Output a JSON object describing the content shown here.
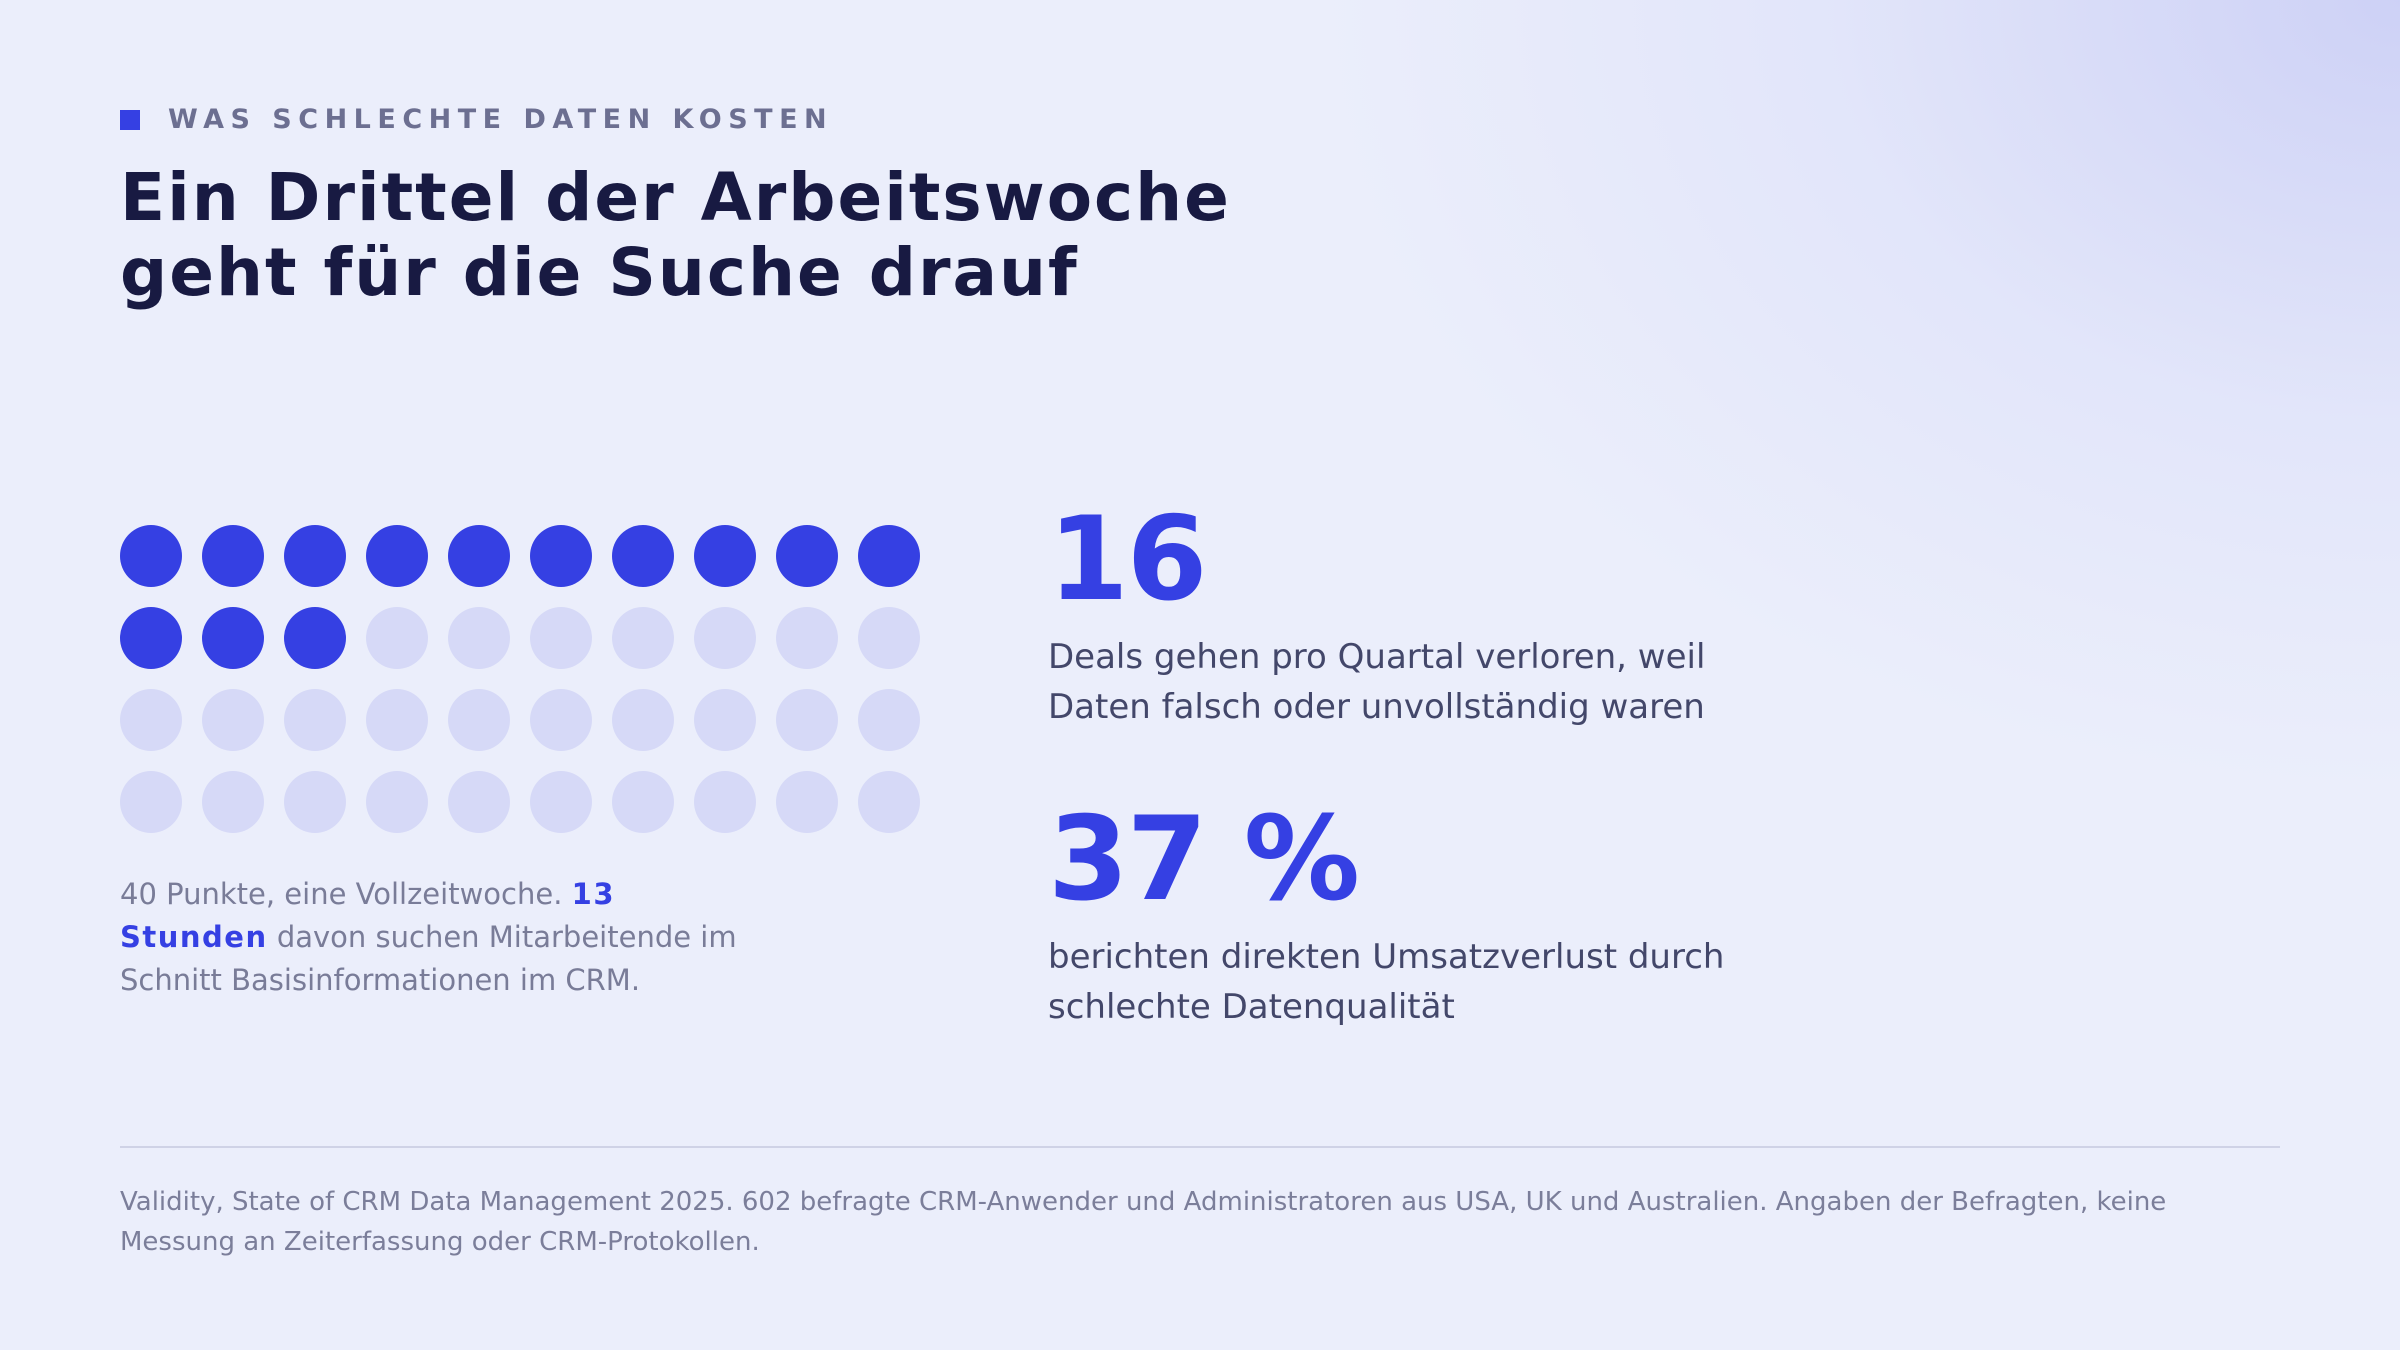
{
  "eyebrow": {
    "label": "WAS SCHLECHTE DATEN KOSTEN"
  },
  "title": {
    "line1": "Ein Drittel der Arbeitswoche",
    "line2": "geht für die Suche drauf"
  },
  "chart_data": {
    "type": "waffle",
    "total": 40,
    "highlighted": 13,
    "rows": 4,
    "columns": 10,
    "highlight_color": "#3540e3",
    "base_color": "#d6d9f7"
  },
  "caption": {
    "text_before": "40 Punkte, eine Vollzeitwoche. ",
    "highlight": "13 Stunden",
    "text_after": " davon suchen Mitarbeitende im Schnitt Basisinformationen im CRM."
  },
  "stats": [
    {
      "value": "16",
      "description": "Deals gehen pro Quartal verloren, weil Daten falsch oder unvollständig waren"
    },
    {
      "value": "37 %",
      "description": "berichten direkten Umsatzverlust durch schlechte Datenqualität"
    }
  ],
  "footnote": "Validity, State of CRM Data Management 2025. 602 befragte CRM-Anwender und Administratoren aus USA, UK und Australien. Angaben der Befragten, keine Messung an Zeiterfassung oder CRM-Protokollen.",
  "colors": {
    "accent": "#3540e3",
    "muted_dot": "#d6d9f7",
    "heading": "#181a42"
  }
}
